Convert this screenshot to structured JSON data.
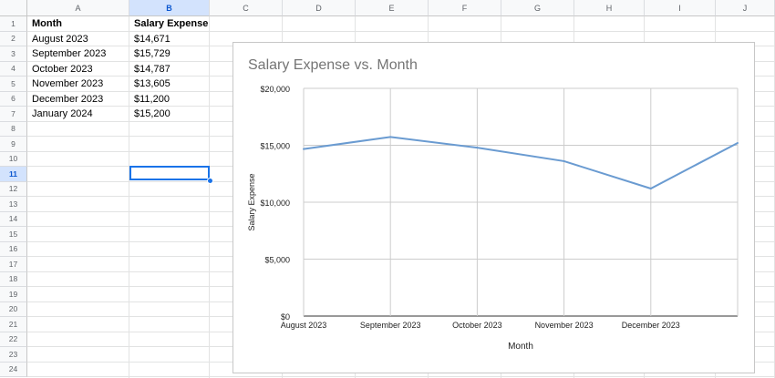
{
  "columns": [
    "A",
    "B",
    "C",
    "D",
    "E",
    "F",
    "G",
    "H",
    "I",
    "J"
  ],
  "selected_column": "B",
  "rows": [
    "1",
    "2",
    "3",
    "4",
    "5",
    "6",
    "7",
    "8",
    "9",
    "10",
    "11",
    "12",
    "13",
    "14",
    "15",
    "16",
    "17",
    "18",
    "19",
    "20",
    "21",
    "22",
    "23",
    "24"
  ],
  "selected_row": "11",
  "sheet": {
    "headers": {
      "month": "Month",
      "salary": "Salary Expense"
    },
    "data": [
      {
        "month": "August 2023",
        "salary": "$14,671"
      },
      {
        "month": "September 2023",
        "salary": "$15,729"
      },
      {
        "month": "October 2023",
        "salary": "$14,787"
      },
      {
        "month": "November 2023",
        "salary": "$13,605"
      },
      {
        "month": "December 2023",
        "salary": "$11,200"
      },
      {
        "month": "January 2024",
        "salary": "$15,200"
      }
    ]
  },
  "chart_data": {
    "type": "line",
    "title": "Salary Expense vs. Month",
    "xlabel": "Month",
    "ylabel": "Salary Expense",
    "categories": [
      "August 2023",
      "September 2023",
      "October 2023",
      "November 2023",
      "December 2023",
      "January 2024"
    ],
    "x_tick_labels": [
      "August 2023",
      "September 2023",
      "October 2023",
      "November 2023",
      "December 2023"
    ],
    "values": [
      14671,
      15729,
      14787,
      13605,
      11200,
      15200
    ],
    "ylim": [
      0,
      20000
    ],
    "y_ticks": [
      0,
      5000,
      10000,
      15000,
      20000
    ],
    "y_tick_labels": [
      "$0",
      "$5,000",
      "$10,000",
      "$15,000",
      "$20,000"
    ],
    "grid": true,
    "legend": "none",
    "line_color": "#6a9bd1"
  }
}
